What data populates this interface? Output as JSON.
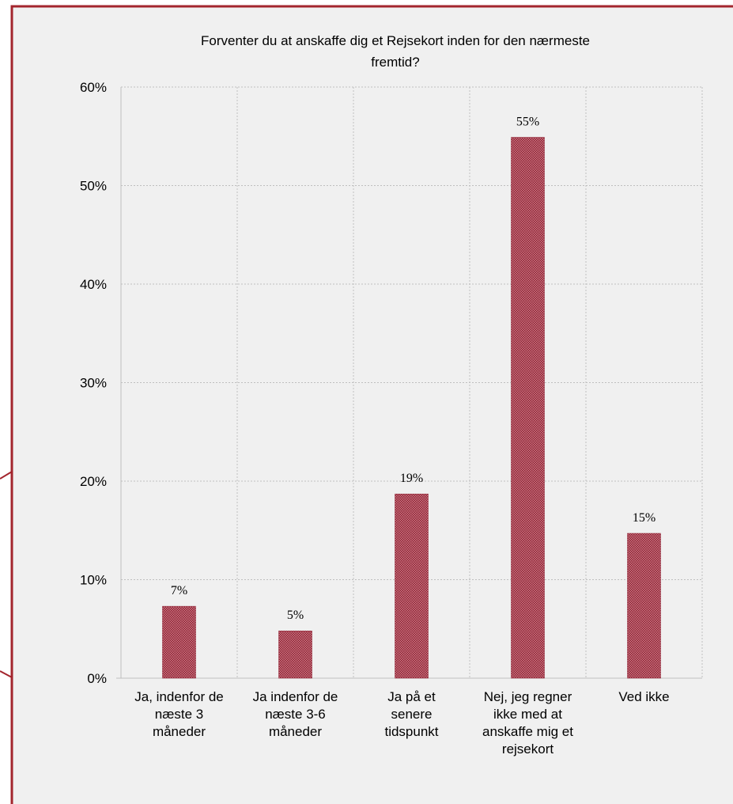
{
  "chart_data": {
    "type": "bar",
    "title": "Forventer du at anskaffe dig et Rejsekort inden for den nærmeste fremtid?",
    "title_lines": [
      "Forventer du at anskaffe dig et Rejsekort inden for den nærmeste",
      "fremtid?"
    ],
    "categories": [
      "Ja, indenfor de næste 3 måneder",
      "Ja indenfor de næste 3-6 måneder",
      "Ja på et senere tidspunkt",
      "Nej, jeg regner ikke med at anskaffe mig et rejsekort",
      "Ved ikke"
    ],
    "category_lines": [
      [
        "Ja, indenfor de",
        "næste 3",
        "måneder"
      ],
      [
        "Ja indenfor de",
        "næste 3-6",
        "måneder"
      ],
      [
        "Ja på et",
        "senere",
        "tidspunkt"
      ],
      [
        "Nej, jeg regner",
        "ikke med at",
        "anskaffe mig et",
        "rejsekort"
      ],
      [
        "Ved ikke"
      ]
    ],
    "values": [
      7.3,
      4.8,
      18.7,
      54.9,
      14.7
    ],
    "data_labels": [
      "7%",
      "5%",
      "19%",
      "55%",
      "15%"
    ],
    "ylim": [
      0,
      60
    ],
    "yticks": [
      0,
      10,
      20,
      30,
      40,
      50,
      60
    ],
    "ytick_labels": [
      "0%",
      "10%",
      "20%",
      "30%",
      "40%",
      "50%",
      "60%"
    ],
    "xlabel": "",
    "ylabel": "",
    "grid": true,
    "legend": "none",
    "colors": {
      "bar": "#a83a4a",
      "frame": "#a3252d",
      "background": "#f0f0f0",
      "grid": "#bfbfbf"
    }
  }
}
